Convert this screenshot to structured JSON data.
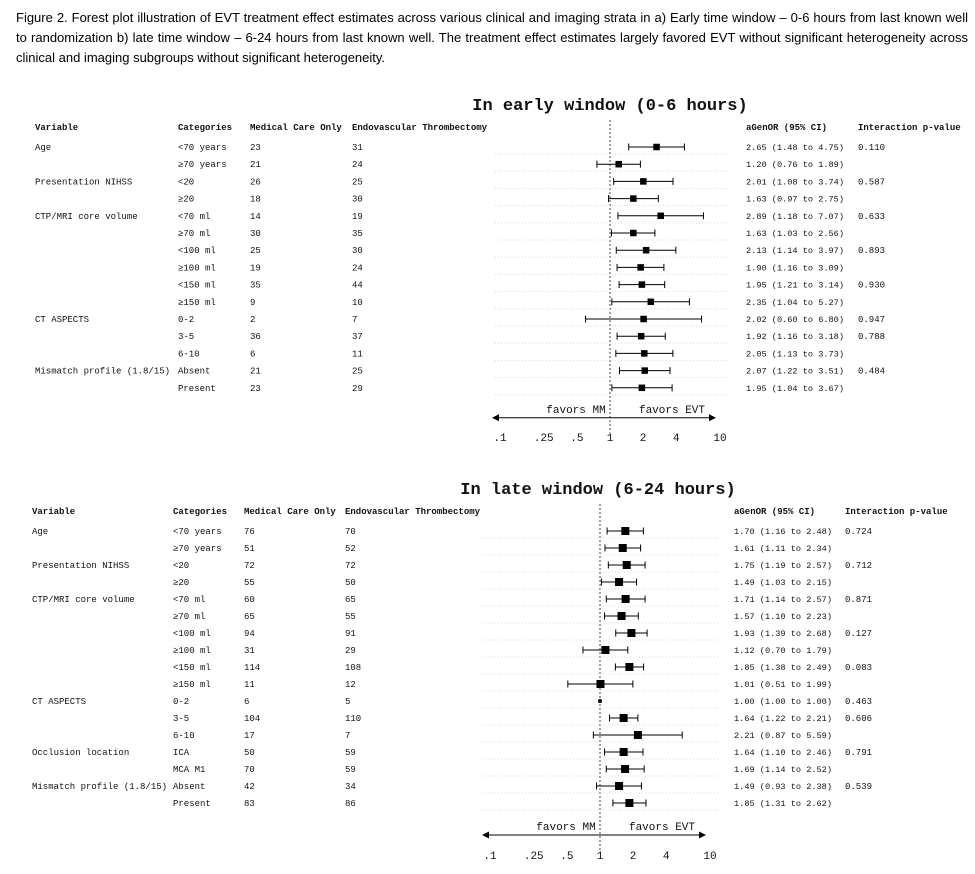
{
  "caption": "Figure 2. Forest plot illustration of EVT treatment effect estimates across various clinical and imaging strata in a) Early time window – 0-6 hours from last known well to randomization b) late time window – 6-24 hours from last known well. The treatment effect estimates largely favored EVT without significant heterogeneity across clinical and imaging subgroups without significant heterogeneity.",
  "chart_data": [
    {
      "type": "forest",
      "title": "In early window (0-6 hours)",
      "headers": {
        "variable": "Variable",
        "categories": "Categories",
        "mm": "Medical Care Only",
        "evt": "Endovascular Thrombectomy",
        "ci": "aGenOR (95% CI)",
        "p": "Interaction p-value"
      },
      "x_scale": "log",
      "xlim": [
        0.1,
        10
      ],
      "xticks": [
        0.1,
        0.25,
        0.5,
        1,
        2,
        4,
        10
      ],
      "xtick_labels": [
        ".1",
        ".25",
        ".5",
        "1",
        "2",
        "4",
        "10"
      ],
      "favors_left": "favors MM",
      "favors_right": "favors EVT",
      "rows": [
        {
          "variable": "Age",
          "category": "<70 years",
          "mm": "23",
          "evt": "31",
          "or": 2.65,
          "lo": 1.48,
          "hi": 4.75,
          "ci_text": "2.65 (1.48 to 4.75)",
          "p": "0.110"
        },
        {
          "variable": "",
          "category": "≥70 years",
          "mm": "21",
          "evt": "24",
          "or": 1.2,
          "lo": 0.76,
          "hi": 1.89,
          "ci_text": "1.20 (0.76 to 1.89)",
          "p": ""
        },
        {
          "variable": "Presentation NIHSS",
          "category": "<20",
          "mm": "26",
          "evt": "25",
          "or": 2.01,
          "lo": 1.08,
          "hi": 3.74,
          "ci_text": "2.01 (1.08 to 3.74)",
          "p": "0.587"
        },
        {
          "variable": "",
          "category": "≥20",
          "mm": "18",
          "evt": "30",
          "or": 1.63,
          "lo": 0.97,
          "hi": 2.75,
          "ci_text": "1.63 (0.97 to 2.75)",
          "p": ""
        },
        {
          "variable": "CTP/MRI core volume",
          "category": "<70 ml",
          "mm": "14",
          "evt": "19",
          "or": 2.89,
          "lo": 1.18,
          "hi": 7.07,
          "ci_text": "2.89 (1.18 to 7.07)",
          "p": "0.633"
        },
        {
          "variable": "",
          "category": "≥70 ml",
          "mm": "30",
          "evt": "35",
          "or": 1.63,
          "lo": 1.03,
          "hi": 2.56,
          "ci_text": "1.63 (1.03 to 2.56)",
          "p": ""
        },
        {
          "variable": "",
          "category": "<100 ml",
          "mm": "25",
          "evt": "30",
          "or": 2.13,
          "lo": 1.14,
          "hi": 3.97,
          "ci_text": "2.13 (1.14 to 3.97)",
          "p": "0.893"
        },
        {
          "variable": "",
          "category": "≥100 ml",
          "mm": "19",
          "evt": "24",
          "or": 1.9,
          "lo": 1.16,
          "hi": 3.09,
          "ci_text": "1.90 (1.16 to 3.09)",
          "p": ""
        },
        {
          "variable": "",
          "category": "<150 ml",
          "mm": "35",
          "evt": "44",
          "or": 1.95,
          "lo": 1.21,
          "hi": 3.14,
          "ci_text": "1.95 (1.21 to 3.14)",
          "p": "0.930"
        },
        {
          "variable": "",
          "category": "≥150 ml",
          "mm": "9",
          "evt": "10",
          "or": 2.35,
          "lo": 1.04,
          "hi": 5.27,
          "ci_text": "2.35 (1.04 to 5.27)",
          "p": ""
        },
        {
          "variable": "CT ASPECTS",
          "category": "0-2",
          "mm": "2",
          "evt": "7",
          "or": 2.02,
          "lo": 0.6,
          "hi": 6.8,
          "ci_text": "2.02 (0.60 to 6.80)",
          "p": "0.947"
        },
        {
          "variable": "",
          "category": "3-5",
          "mm": "36",
          "evt": "37",
          "or": 1.92,
          "lo": 1.16,
          "hi": 3.18,
          "ci_text": "1.92 (1.16 to 3.18)",
          "p": "0.788"
        },
        {
          "variable": "",
          "category": "6-10",
          "mm": "6",
          "evt": "11",
          "or": 2.05,
          "lo": 1.13,
          "hi": 3.73,
          "ci_text": "2.05 (1.13 to 3.73)",
          "p": ""
        },
        {
          "variable": "Mismatch profile (1.8/15)",
          "category": "Absent",
          "mm": "21",
          "evt": "25",
          "or": 2.07,
          "lo": 1.22,
          "hi": 3.51,
          "ci_text": "2.07 (1.22 to 3.51)",
          "p": "0.484"
        },
        {
          "variable": "",
          "category": "Present",
          "mm": "23",
          "evt": "29",
          "or": 1.95,
          "lo": 1.04,
          "hi": 3.67,
          "ci_text": "1.95 (1.04 to 3.67)",
          "p": ""
        }
      ]
    },
    {
      "type": "forest",
      "title": "In late window (6-24 hours)",
      "headers": {
        "variable": "Variable",
        "categories": "Categories",
        "mm": "Medical Care Only",
        "evt": "Endovascular Thrombectomy",
        "ci": "aGenOR (95% CI)",
        "p": "Interaction p-value"
      },
      "x_scale": "log",
      "xlim": [
        0.1,
        10
      ],
      "xticks": [
        0.1,
        0.25,
        0.5,
        1,
        2,
        4,
        10
      ],
      "xtick_labels": [
        ".1",
        ".25",
        ".5",
        "1",
        "2",
        "4",
        "10"
      ],
      "favors_left": "favors MM",
      "favors_right": "favors EVT",
      "rows": [
        {
          "variable": "Age",
          "category": "<70 years",
          "mm": "76",
          "evt": "70",
          "or": 1.7,
          "lo": 1.16,
          "hi": 2.48,
          "ci_text": "1.70 (1.16 to 2.48)",
          "p": "0.724"
        },
        {
          "variable": "",
          "category": "≥70 years",
          "mm": "51",
          "evt": "52",
          "or": 1.61,
          "lo": 1.11,
          "hi": 2.34,
          "ci_text": "1.61 (1.11 to 2.34)",
          "p": ""
        },
        {
          "variable": "Presentation NIHSS",
          "category": "<20",
          "mm": "72",
          "evt": "72",
          "or": 1.75,
          "lo": 1.19,
          "hi": 2.57,
          "ci_text": "1.75 (1.19 to 2.57)",
          "p": "0.712"
        },
        {
          "variable": "",
          "category": "≥20",
          "mm": "55",
          "evt": "50",
          "or": 1.49,
          "lo": 1.03,
          "hi": 2.15,
          "ci_text": "1.49 (1.03 to 2.15)",
          "p": ""
        },
        {
          "variable": "CTP/MRI core volume",
          "category": "<70 ml",
          "mm": "60",
          "evt": "65",
          "or": 1.71,
          "lo": 1.14,
          "hi": 2.57,
          "ci_text": "1.71 (1.14 to 2.57)",
          "p": "0.871"
        },
        {
          "variable": "",
          "category": "≥70 ml",
          "mm": "65",
          "evt": "55",
          "or": 1.57,
          "lo": 1.1,
          "hi": 2.23,
          "ci_text": "1.57 (1.10 to 2.23)",
          "p": ""
        },
        {
          "variable": "",
          "category": "<100 ml",
          "mm": "94",
          "evt": "91",
          "or": 1.93,
          "lo": 1.39,
          "hi": 2.68,
          "ci_text": "1.93 (1.39 to 2.68)",
          "p": "0.127"
        },
        {
          "variable": "",
          "category": "≥100 ml",
          "mm": "31",
          "evt": "29",
          "or": 1.12,
          "lo": 0.7,
          "hi": 1.79,
          "ci_text": "1.12 (0.70 to 1.79)",
          "p": ""
        },
        {
          "variable": "",
          "category": "<150 ml",
          "mm": "114",
          "evt": "108",
          "or": 1.85,
          "lo": 1.38,
          "hi": 2.49,
          "ci_text": "1.85 (1.38 to 2.49)",
          "p": "0.083"
        },
        {
          "variable": "",
          "category": "≥150 ml",
          "mm": "11",
          "evt": "12",
          "or": 1.01,
          "lo": 0.51,
          "hi": 1.99,
          "ci_text": "1.01 (0.51 to 1.99)",
          "p": ""
        },
        {
          "variable": "CT ASPECTS",
          "category": "0-2",
          "mm": "6",
          "evt": "5",
          "or": 1.0,
          "lo": 1.0,
          "hi": 1.0,
          "ci_text": "1.00 (1.00 to 1.00)",
          "p": "0.463"
        },
        {
          "variable": "",
          "category": "3-5",
          "mm": "104",
          "evt": "110",
          "or": 1.64,
          "lo": 1.22,
          "hi": 2.21,
          "ci_text": "1.64 (1.22 to 2.21)",
          "p": "0.606"
        },
        {
          "variable": "",
          "category": "6-10",
          "mm": "17",
          "evt": "7",
          "or": 2.21,
          "lo": 0.87,
          "hi": 5.59,
          "ci_text": "2.21 (0.87 to 5.59)",
          "p": ""
        },
        {
          "variable": "Occlusion location",
          "category": "ICA",
          "mm": "50",
          "evt": "59",
          "or": 1.64,
          "lo": 1.1,
          "hi": 2.46,
          "ci_text": "1.64 (1.10 to 2.46)",
          "p": "0.791"
        },
        {
          "variable": "",
          "category": "MCA M1",
          "mm": "70",
          "evt": "59",
          "or": 1.69,
          "lo": 1.14,
          "hi": 2.52,
          "ci_text": "1.69 (1.14 to 2.52)",
          "p": ""
        },
        {
          "variable": "Mismatch profile (1.8/15)",
          "category": "Absent",
          "mm": "42",
          "evt": "34",
          "or": 1.49,
          "lo": 0.93,
          "hi": 2.38,
          "ci_text": "1.49 (0.93 to 2.38)",
          "p": "0.539"
        },
        {
          "variable": "",
          "category": "Present",
          "mm": "83",
          "evt": "86",
          "or": 1.85,
          "lo": 1.31,
          "hi": 2.62,
          "ci_text": "1.85 (1.31 to 2.62)",
          "p": ""
        }
      ]
    }
  ]
}
